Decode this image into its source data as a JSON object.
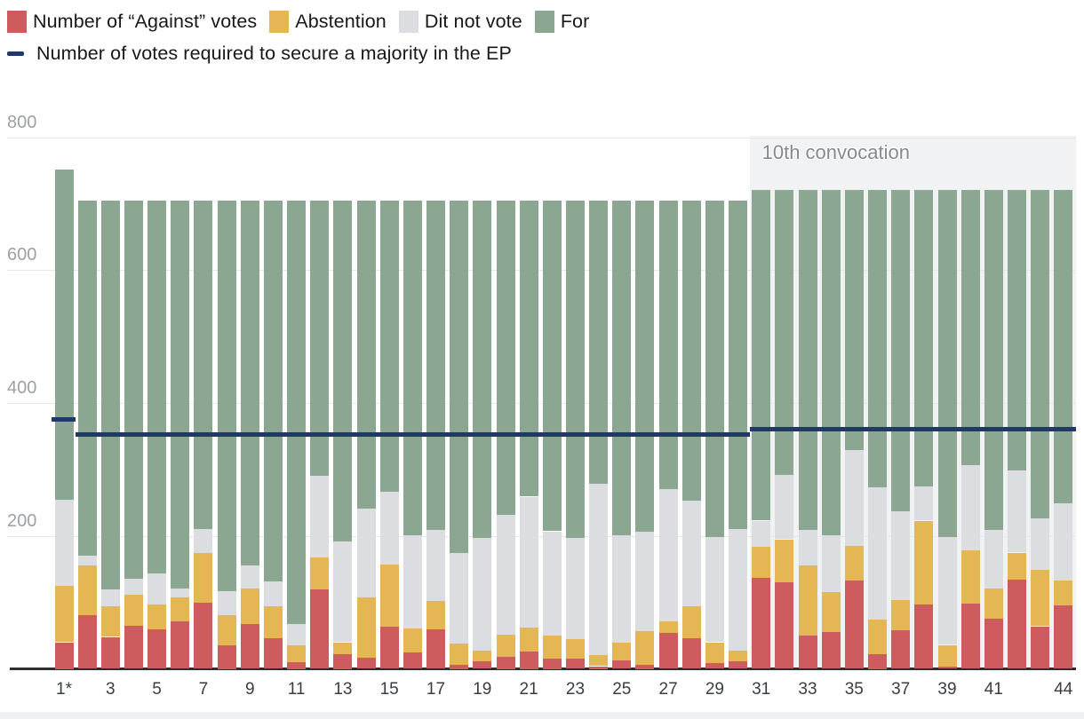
{
  "legend": {
    "items": [
      {
        "key": "against",
        "label": "Number of “Against” votes",
        "color": "#ce5b5e"
      },
      {
        "key": "abstention",
        "label": "Abstention",
        "color": "#e5b654"
      },
      {
        "key": "did_not_vote",
        "label": "Dit not vote",
        "color": "#dcdde1"
      },
      {
        "key": "for",
        "label": "For",
        "color": "#8ba792"
      }
    ],
    "line_item": {
      "label": "Number of votes required to secure a majority in the EP",
      "color": "#20386b"
    }
  },
  "chart_data": {
    "type": "bar",
    "stacked": true,
    "title": "",
    "xlabel": "",
    "ylabel": "",
    "ylim": [
      0,
      800
    ],
    "yticks": [
      200,
      400,
      600,
      800
    ],
    "grid": true,
    "legend_position": "top",
    "categories": [
      "1",
      "2",
      "3",
      "4",
      "5",
      "6",
      "7",
      "8",
      "9",
      "10",
      "11",
      "12",
      "13",
      "14",
      "15",
      "16",
      "17",
      "18",
      "19",
      "20",
      "21",
      "22",
      "23",
      "24",
      "25",
      "26",
      "27",
      "28",
      "29",
      "30",
      "31",
      "32",
      "33",
      "34",
      "35",
      "36",
      "37",
      "38",
      "39",
      "40",
      "41",
      "42",
      "43",
      "44"
    ],
    "x_tick_labels": [
      {
        "label": "1*",
        "bar": 1
      },
      {
        "label": "3",
        "bar": 3
      },
      {
        "label": "5",
        "bar": 5
      },
      {
        "label": "7",
        "bar": 7
      },
      {
        "label": "9",
        "bar": 9
      },
      {
        "label": "11",
        "bar": 11
      },
      {
        "label": "13",
        "bar": 13
      },
      {
        "label": "15",
        "bar": 15
      },
      {
        "label": "17",
        "bar": 17
      },
      {
        "label": "19",
        "bar": 19
      },
      {
        "label": "21",
        "bar": 21
      },
      {
        "label": "23",
        "bar": 23
      },
      {
        "label": "25",
        "bar": 25
      },
      {
        "label": "27",
        "bar": 27
      },
      {
        "label": "29",
        "bar": 29
      },
      {
        "label": "31",
        "bar": 31
      },
      {
        "label": "33",
        "bar": 33
      },
      {
        "label": "35",
        "bar": 35
      },
      {
        "label": "37",
        "bar": 37
      },
      {
        "label": "39",
        "bar": 39
      },
      {
        "label": "41",
        "bar": 41
      },
      {
        "label": "44",
        "bar": 44
      }
    ],
    "series": [
      {
        "name": "Number of “Against” votes",
        "color": "#ce5b5e",
        "values": [
          40,
          81,
          48,
          65,
          60,
          72,
          100,
          36,
          68,
          46,
          10,
          119,
          22,
          17,
          63,
          25,
          59,
          6,
          11,
          18,
          26,
          16,
          15,
          4,
          13,
          6,
          54,
          46,
          9,
          11,
          137,
          130,
          50,
          55,
          133,
          22,
          58,
          97,
          3,
          98,
          76,
          134,
          64,
          96
        ]
      },
      {
        "name": "Abstention",
        "color": "#e5b654",
        "values": [
          85,
          74,
          46,
          47,
          37,
          36,
          74,
          45,
          53,
          48,
          26,
          49,
          18,
          90,
          94,
          36,
          43,
          32,
          17,
          33,
          36,
          34,
          30,
          17,
          27,
          51,
          18,
          48,
          31,
          17,
          47,
          65,
          106,
          60,
          52,
          52,
          46,
          126,
          33,
          80,
          45,
          41,
          85,
          37
        ]
      },
      {
        "name": "Dit not vote",
        "color": "#dcdde1",
        "values": [
          130,
          15,
          26,
          23,
          46,
          13,
          36,
          36,
          34,
          38,
          32,
          122,
          152,
          134,
          109,
          140,
          107,
          136,
          169,
          181,
          197,
          157,
          152,
          258,
          161,
          149,
          199,
          159,
          158,
          182,
          39,
          97,
          53,
          86,
          144,
          199,
          133,
          52,
          162,
          129,
          88,
          124,
          77,
          116
        ]
      },
      {
        "name": "For",
        "color": "#8ba792",
        "values": [
          496,
          535,
          585,
          570,
          562,
          584,
          495,
          588,
          550,
          573,
          637,
          415,
          513,
          464,
          439,
          504,
          496,
          531,
          508,
          473,
          446,
          498,
          508,
          426,
          504,
          499,
          434,
          452,
          507,
          495,
          497,
          428,
          511,
          519,
          391,
          447,
          483,
          445,
          522,
          413,
          511,
          421,
          494,
          471
        ]
      }
    ],
    "majority_line": {
      "label": "Number of votes required to secure a majority in the EP",
      "color": "#20386b",
      "segments": [
        {
          "value": 376,
          "bars": [
            1,
            1
          ]
        },
        {
          "value": 353,
          "bars": [
            2,
            30
          ]
        },
        {
          "value": 361,
          "bars": [
            31,
            44
          ]
        }
      ]
    },
    "annotation_region": {
      "label": "10th convocation",
      "bars": [
        31,
        44
      ],
      "color": "#f1f2f4"
    }
  }
}
